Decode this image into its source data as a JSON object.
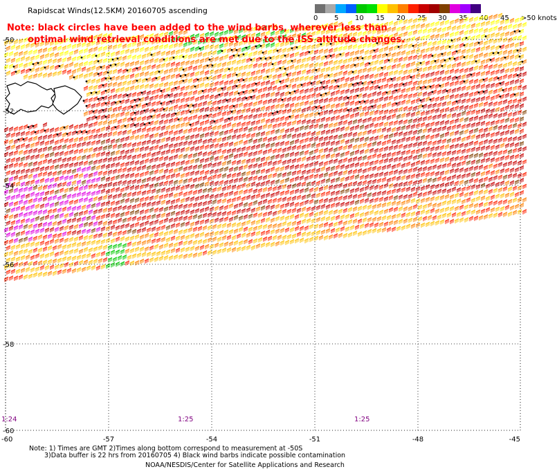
{
  "header": {
    "title": "Rapidscat Winds(12.5KM) 20160705 ascending",
    "note_line1": "Note: black circles have been added to the wind barbs, wherever less than",
    "note_line2": "optimal wind retrieval conditions are met due to the ISS altitude changes."
  },
  "legend": {
    "swatch_colors": [
      "#707070",
      "#a8a8a8",
      "#00a8ff",
      "#0060ff",
      "#00c800",
      "#00e000",
      "#ffff00",
      "#ffc000",
      "#ff8000",
      "#ff2000",
      "#c80000",
      "#a00000",
      "#804000",
      "#e000e0",
      "#a000ff",
      "#400080"
    ],
    "labels": [
      "0",
      "5",
      "10",
      "15",
      "20",
      "25",
      "30",
      "35",
      "40",
      "45",
      ">50 knots"
    ]
  },
  "map": {
    "lat_labels": [
      "-50",
      "-52",
      "-54",
      "-56",
      "-58",
      "-60"
    ],
    "lon_labels": [
      "-60",
      "-57",
      "-54",
      "-51",
      "-48",
      "-45"
    ],
    "time_labels": [
      "1:24",
      "1:25",
      "1:25"
    ]
  },
  "footer": {
    "note1": "Note: 1) Times are GMT 2)Times along bottom correspond to measurement at -50S",
    "note2": "3)Data buffer is 22 hrs from 20160705 4) Black wind barbs indicate possible contamination",
    "credit": "NOAA/NESDIS/Center for Satellite Applications and Research"
  }
}
